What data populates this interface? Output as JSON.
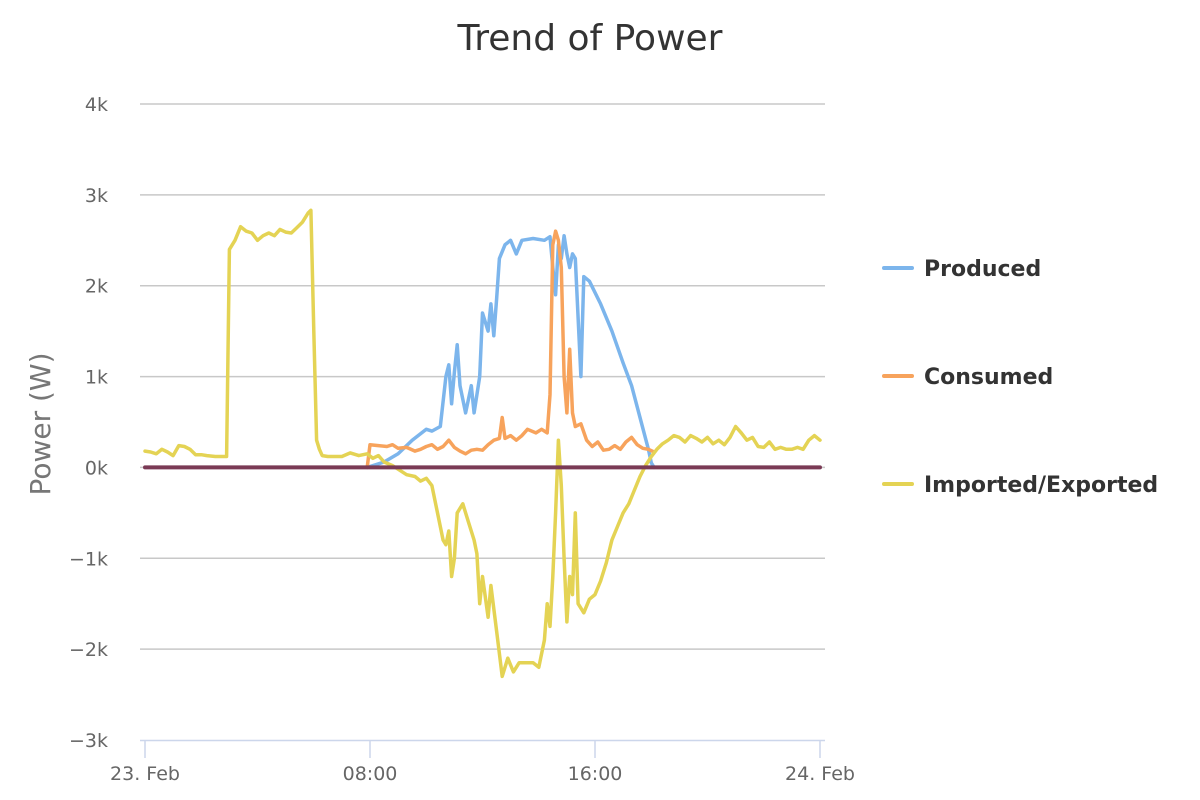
{
  "chart_data": {
    "type": "line",
    "title": "Trend of Power",
    "ylabel": "Power (W)",
    "xlabel": "",
    "ylim": [
      -3000,
      4000
    ],
    "yticks": [
      {
        "value": 4000,
        "label": "4k"
      },
      {
        "value": 3000,
        "label": "3k"
      },
      {
        "value": 2000,
        "label": "2k"
      },
      {
        "value": 1000,
        "label": "1k"
      },
      {
        "value": 0,
        "label": "0k"
      },
      {
        "value": -1000,
        "label": "−1k"
      },
      {
        "value": -2000,
        "label": "−2k"
      },
      {
        "value": -3000,
        "label": "−3k"
      }
    ],
    "xlim": [
      0,
      24
    ],
    "xticks": [
      {
        "value": 0,
        "label": "23. Feb"
      },
      {
        "value": 8,
        "label": "08:00"
      },
      {
        "value": 16,
        "label": "16:00"
      },
      {
        "value": 24,
        "label": "24. Feb"
      }
    ],
    "x_unit": "hours of 23. Feb",
    "grid": true,
    "legend": "right",
    "series": [
      {
        "name": "Produced",
        "color": "#7cb5ec",
        "points": [
          [
            7.9,
            0
          ],
          [
            8.5,
            60
          ],
          [
            9.0,
            150
          ],
          [
            9.5,
            300
          ],
          [
            10.0,
            420
          ],
          [
            10.2,
            400
          ],
          [
            10.5,
            450
          ],
          [
            10.7,
            1000
          ],
          [
            10.8,
            1130
          ],
          [
            10.9,
            700
          ],
          [
            11.0,
            1050
          ],
          [
            11.1,
            1350
          ],
          [
            11.2,
            900
          ],
          [
            11.4,
            600
          ],
          [
            11.6,
            900
          ],
          [
            11.7,
            600
          ],
          [
            11.9,
            1000
          ],
          [
            12.0,
            1700
          ],
          [
            12.2,
            1500
          ],
          [
            12.3,
            1800
          ],
          [
            12.4,
            1450
          ],
          [
            12.5,
            1850
          ],
          [
            12.6,
            2300
          ],
          [
            12.8,
            2450
          ],
          [
            13.0,
            2500
          ],
          [
            13.2,
            2350
          ],
          [
            13.4,
            2500
          ],
          [
            13.8,
            2520
          ],
          [
            14.2,
            2500
          ],
          [
            14.4,
            2540
          ],
          [
            14.5,
            2200
          ],
          [
            14.6,
            1900
          ],
          [
            14.7,
            2450
          ],
          [
            14.8,
            2300
          ],
          [
            14.9,
            2550
          ],
          [
            15.0,
            2350
          ],
          [
            15.1,
            2200
          ],
          [
            15.2,
            2350
          ],
          [
            15.3,
            2300
          ],
          [
            15.5,
            1000
          ],
          [
            15.6,
            2100
          ],
          [
            15.8,
            2050
          ],
          [
            16.2,
            1800
          ],
          [
            16.6,
            1500
          ],
          [
            17.0,
            1150
          ],
          [
            17.3,
            900
          ],
          [
            17.6,
            550
          ],
          [
            17.9,
            200
          ],
          [
            18.0,
            50
          ],
          [
            18.1,
            0
          ]
        ]
      },
      {
        "name": "Consumed",
        "color": "#f7a35c",
        "points": [
          [
            7.9,
            0
          ],
          [
            8.0,
            250
          ],
          [
            8.3,
            240
          ],
          [
            8.6,
            230
          ],
          [
            8.8,
            250
          ],
          [
            9.0,
            210
          ],
          [
            9.3,
            220
          ],
          [
            9.6,
            180
          ],
          [
            9.8,
            200
          ],
          [
            10.0,
            230
          ],
          [
            10.2,
            250
          ],
          [
            10.4,
            200
          ],
          [
            10.6,
            230
          ],
          [
            10.8,
            300
          ],
          [
            11.0,
            220
          ],
          [
            11.2,
            180
          ],
          [
            11.4,
            150
          ],
          [
            11.6,
            190
          ],
          [
            11.8,
            200
          ],
          [
            12.0,
            190
          ],
          [
            12.2,
            250
          ],
          [
            12.4,
            300
          ],
          [
            12.6,
            320
          ],
          [
            12.7,
            550
          ],
          [
            12.8,
            320
          ],
          [
            13.0,
            350
          ],
          [
            13.2,
            300
          ],
          [
            13.4,
            350
          ],
          [
            13.6,
            420
          ],
          [
            13.9,
            380
          ],
          [
            14.1,
            420
          ],
          [
            14.3,
            380
          ],
          [
            14.4,
            800
          ],
          [
            14.5,
            2450
          ],
          [
            14.6,
            2600
          ],
          [
            14.7,
            2500
          ],
          [
            14.8,
            2200
          ],
          [
            14.9,
            1000
          ],
          [
            15.0,
            600
          ],
          [
            15.1,
            1300
          ],
          [
            15.2,
            600
          ],
          [
            15.3,
            450
          ],
          [
            15.5,
            480
          ],
          [
            15.7,
            300
          ],
          [
            15.9,
            230
          ],
          [
            16.1,
            280
          ],
          [
            16.3,
            190
          ],
          [
            16.5,
            200
          ],
          [
            16.7,
            240
          ],
          [
            16.9,
            200
          ],
          [
            17.1,
            280
          ],
          [
            17.3,
            330
          ],
          [
            17.5,
            250
          ],
          [
            17.7,
            210
          ],
          [
            17.9,
            200
          ],
          [
            18.1,
            170
          ]
        ]
      },
      {
        "name": "Imported/Exported",
        "color": "#e4d354",
        "points": [
          [
            0.0,
            180
          ],
          [
            0.2,
            170
          ],
          [
            0.4,
            150
          ],
          [
            0.6,
            200
          ],
          [
            0.8,
            170
          ],
          [
            1.0,
            130
          ],
          [
            1.2,
            240
          ],
          [
            1.4,
            230
          ],
          [
            1.6,
            200
          ],
          [
            1.8,
            140
          ],
          [
            2.0,
            140
          ],
          [
            2.2,
            130
          ],
          [
            2.5,
            120
          ],
          [
            2.9,
            120
          ],
          [
            3.0,
            2400
          ],
          [
            3.2,
            2500
          ],
          [
            3.4,
            2650
          ],
          [
            3.6,
            2600
          ],
          [
            3.8,
            2580
          ],
          [
            4.0,
            2500
          ],
          [
            4.2,
            2550
          ],
          [
            4.4,
            2580
          ],
          [
            4.6,
            2550
          ],
          [
            4.8,
            2620
          ],
          [
            5.0,
            2590
          ],
          [
            5.2,
            2580
          ],
          [
            5.4,
            2640
          ],
          [
            5.6,
            2700
          ],
          [
            5.8,
            2800
          ],
          [
            5.9,
            2830
          ],
          [
            6.0,
            1500
          ],
          [
            6.1,
            300
          ],
          [
            6.2,
            200
          ],
          [
            6.3,
            130
          ],
          [
            6.5,
            120
          ],
          [
            7.0,
            120
          ],
          [
            7.3,
            160
          ],
          [
            7.6,
            130
          ],
          [
            7.9,
            150
          ],
          [
            8.1,
            100
          ],
          [
            8.3,
            130
          ],
          [
            8.5,
            60
          ],
          [
            8.8,
            20
          ],
          [
            9.0,
            -20
          ],
          [
            9.3,
            -80
          ],
          [
            9.6,
            -100
          ],
          [
            9.8,
            -150
          ],
          [
            10.0,
            -120
          ],
          [
            10.2,
            -200
          ],
          [
            10.4,
            -500
          ],
          [
            10.6,
            -800
          ],
          [
            10.7,
            -850
          ],
          [
            10.8,
            -700
          ],
          [
            10.9,
            -1200
          ],
          [
            11.0,
            -1000
          ],
          [
            11.1,
            -500
          ],
          [
            11.3,
            -400
          ],
          [
            11.5,
            -600
          ],
          [
            11.7,
            -800
          ],
          [
            11.8,
            -950
          ],
          [
            11.9,
            -1500
          ],
          [
            12.0,
            -1200
          ],
          [
            12.2,
            -1650
          ],
          [
            12.3,
            -1300
          ],
          [
            12.5,
            -1800
          ],
          [
            12.7,
            -2300
          ],
          [
            12.9,
            -2100
          ],
          [
            13.1,
            -2250
          ],
          [
            13.3,
            -2150
          ],
          [
            13.6,
            -2150
          ],
          [
            13.8,
            -2150
          ],
          [
            14.0,
            -2200
          ],
          [
            14.2,
            -1900
          ],
          [
            14.3,
            -1500
          ],
          [
            14.4,
            -1750
          ],
          [
            14.5,
            -1200
          ],
          [
            14.6,
            -500
          ],
          [
            14.7,
            300
          ],
          [
            14.8,
            -200
          ],
          [
            14.9,
            -1000
          ],
          [
            15.0,
            -1700
          ],
          [
            15.1,
            -1200
          ],
          [
            15.2,
            -1400
          ],
          [
            15.3,
            -500
          ],
          [
            15.4,
            -1500
          ],
          [
            15.6,
            -1600
          ],
          [
            15.8,
            -1450
          ],
          [
            16.0,
            -1400
          ],
          [
            16.2,
            -1250
          ],
          [
            16.4,
            -1050
          ],
          [
            16.6,
            -800
          ],
          [
            16.8,
            -650
          ],
          [
            17.0,
            -500
          ],
          [
            17.2,
            -400
          ],
          [
            17.4,
            -250
          ],
          [
            17.6,
            -100
          ],
          [
            17.8,
            20
          ],
          [
            18.0,
            120
          ],
          [
            18.2,
            200
          ],
          [
            18.4,
            260
          ],
          [
            18.6,
            300
          ],
          [
            18.8,
            350
          ],
          [
            19.0,
            330
          ],
          [
            19.2,
            280
          ],
          [
            19.4,
            350
          ],
          [
            19.6,
            320
          ],
          [
            19.8,
            280
          ],
          [
            20.0,
            330
          ],
          [
            20.2,
            260
          ],
          [
            20.4,
            300
          ],
          [
            20.6,
            250
          ],
          [
            20.8,
            330
          ],
          [
            21.0,
            450
          ],
          [
            21.2,
            380
          ],
          [
            21.4,
            300
          ],
          [
            21.6,
            330
          ],
          [
            21.8,
            230
          ],
          [
            22.0,
            220
          ],
          [
            22.2,
            280
          ],
          [
            22.4,
            200
          ],
          [
            22.6,
            220
          ],
          [
            22.8,
            200
          ],
          [
            23.0,
            200
          ],
          [
            23.2,
            220
          ],
          [
            23.4,
            200
          ],
          [
            23.6,
            300
          ],
          [
            23.8,
            350
          ],
          [
            24.0,
            300
          ]
        ]
      },
      {
        "name": "",
        "color": "#7a3a55",
        "points": [
          [
            0,
            0
          ],
          [
            24,
            0
          ]
        ]
      }
    ]
  }
}
